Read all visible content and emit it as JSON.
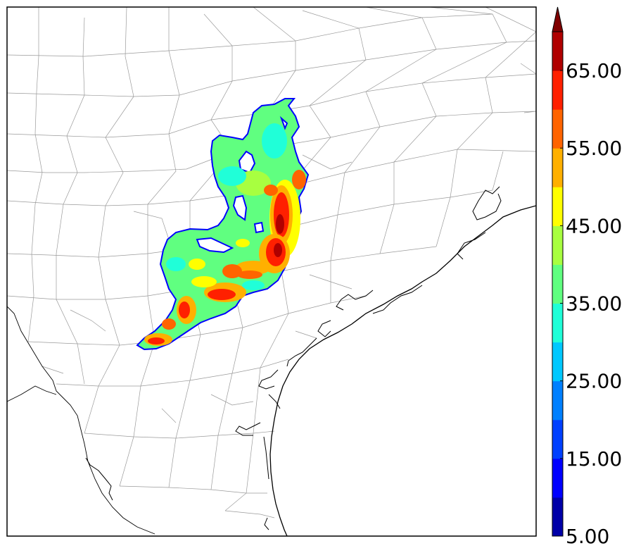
{
  "map": {
    "county_line_color": "#9a9a9a",
    "coast_color": "#000000",
    "frame_color": "#000000",
    "field_outline_color": "#0000ff"
  },
  "colorbar": {
    "extend": "max",
    "levels": [
      5,
      10,
      15,
      20,
      25,
      30,
      35,
      40,
      45,
      50,
      55,
      60,
      65,
      70
    ],
    "colors": [
      "#0000a8",
      "#0000ff",
      "#0040ff",
      "#0080ff",
      "#00c8ff",
      "#20ffd8",
      "#60ff80",
      "#a8ff40",
      "#ffff00",
      "#ffb000",
      "#ff6400",
      "#ff2000",
      "#b00000"
    ],
    "extend_color": "#800000",
    "tick_labels": [
      "5.00",
      "15.00",
      "25.00",
      "35.00",
      "45.00",
      "55.00",
      "65.00"
    ]
  }
}
